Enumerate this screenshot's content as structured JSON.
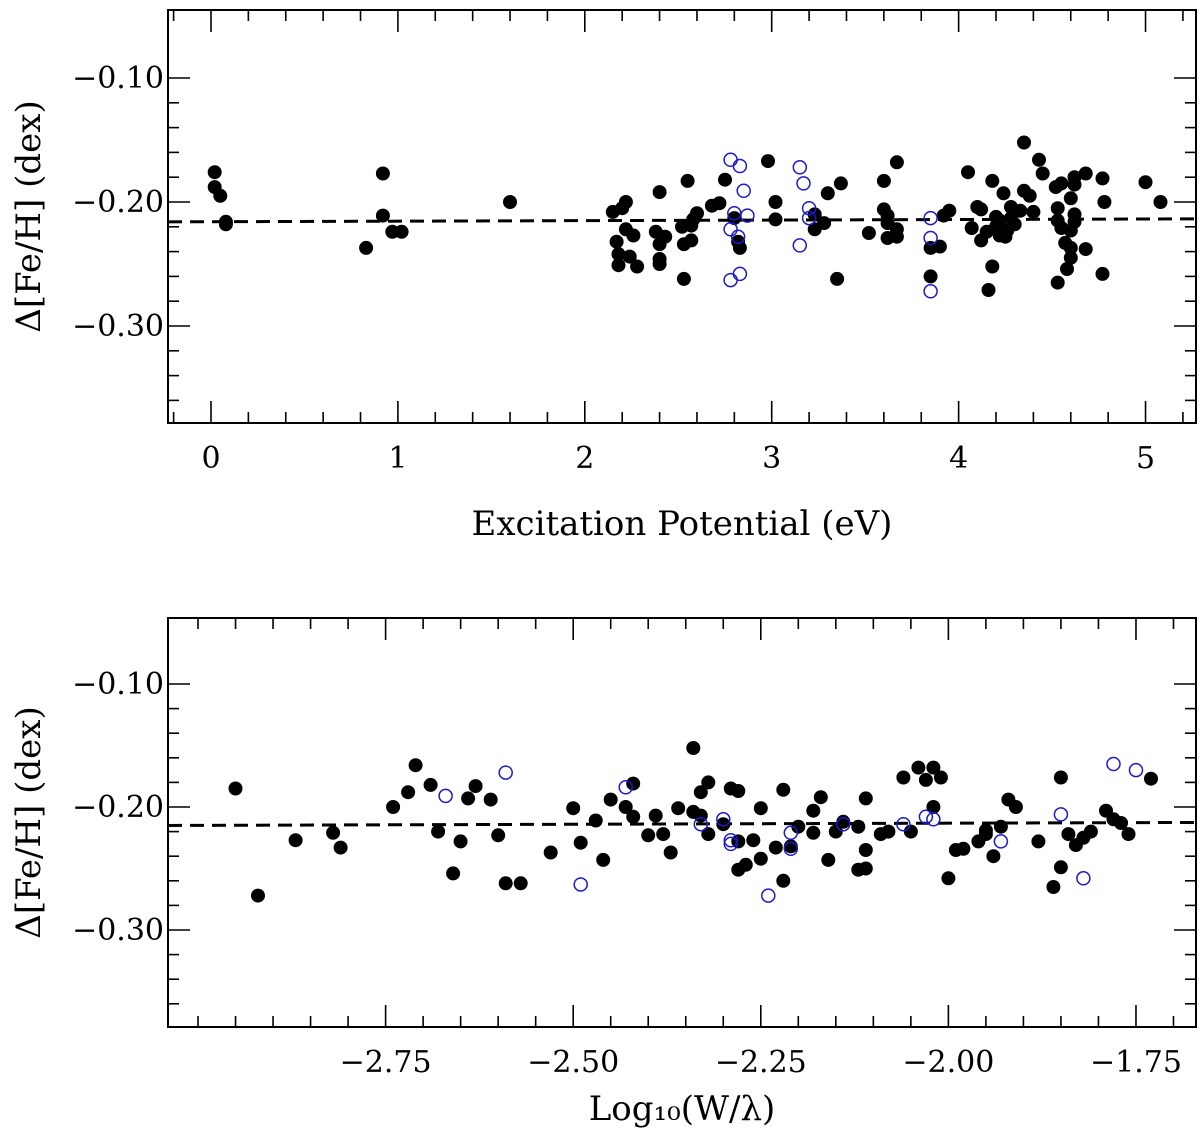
{
  "chart_data": [
    {
      "type": "scatter",
      "xlabel": "Excitation Potential (eV)",
      "ylabel": "Δ[Fe/H] (dex)",
      "xlim": [
        -0.23,
        5.27
      ],
      "ylim": [
        -0.1,
        -0.38
      ],
      "y_inverted": true,
      "x_ticks": [
        0,
        1,
        2,
        3,
        4,
        5
      ],
      "x_tick_labels": [
        "0",
        "1",
        "2",
        "3",
        "4",
        "5"
      ],
      "x_minor_step": 0.2,
      "y_ticks": [
        -0.1,
        -0.2,
        -0.3
      ],
      "y_tick_labels": [
        "−0.10",
        "−0.20",
        "−0.30"
      ],
      "y_minor_step": 0.02,
      "reference_line": {
        "value": -0.216,
        "style": "dashed"
      },
      "series": [
        {
          "marker": "filled-circle",
          "color": "#000000",
          "points": [
            [
              0.02,
              -0.176
            ],
            [
              0.02,
              -0.188
            ],
            [
              0.05,
              -0.195
            ],
            [
              0.08,
              -0.218
            ],
            [
              0.08,
              -0.216
            ],
            [
              0.83,
              -0.237
            ],
            [
              0.92,
              -0.177
            ],
            [
              0.92,
              -0.211
            ],
            [
              0.97,
              -0.224
            ],
            [
              1.02,
              -0.224
            ],
            [
              1.6,
              -0.2
            ],
            [
              2.15,
              -0.208
            ],
            [
              2.17,
              -0.232
            ],
            [
              2.18,
              -0.242
            ],
            [
              2.18,
              -0.251
            ],
            [
              2.2,
              -0.205
            ],
            [
              2.22,
              -0.2
            ],
            [
              2.22,
              -0.222
            ],
            [
              2.24,
              -0.244
            ],
            [
              2.26,
              -0.227
            ],
            [
              2.28,
              -0.252
            ],
            [
              2.38,
              -0.224
            ],
            [
              2.4,
              -0.192
            ],
            [
              2.4,
              -0.234
            ],
            [
              2.4,
              -0.246
            ],
            [
              2.4,
              -0.25
            ],
            [
              2.43,
              -0.228
            ],
            [
              2.52,
              -0.22
            ],
            [
              2.53,
              -0.234
            ],
            [
              2.53,
              -0.262
            ],
            [
              2.55,
              -0.183
            ],
            [
              2.57,
              -0.231
            ],
            [
              2.57,
              -0.219
            ],
            [
              2.58,
              -0.214
            ],
            [
              2.6,
              -0.209
            ],
            [
              2.68,
              -0.203
            ],
            [
              2.72,
              -0.201
            ],
            [
              2.75,
              -0.182
            ],
            [
              2.8,
              -0.213
            ],
            [
              2.82,
              -0.232
            ],
            [
              2.83,
              -0.237
            ],
            [
              2.98,
              -0.167
            ],
            [
              3.02,
              -0.2
            ],
            [
              3.02,
              -0.214
            ],
            [
              3.23,
              -0.222
            ],
            [
              3.23,
              -0.21
            ],
            [
              3.28,
              -0.217
            ],
            [
              3.3,
              -0.193
            ],
            [
              3.35,
              -0.262
            ],
            [
              3.37,
              -0.185
            ],
            [
              3.52,
              -0.225
            ],
            [
              3.6,
              -0.183
            ],
            [
              3.6,
              -0.206
            ],
            [
              3.62,
              -0.211
            ],
            [
              3.62,
              -0.217
            ],
            [
              3.62,
              -0.229
            ],
            [
              3.67,
              -0.168
            ],
            [
              3.67,
              -0.222
            ],
            [
              3.67,
              -0.228
            ],
            [
              3.85,
              -0.237
            ],
            [
              3.85,
              -0.26
            ],
            [
              3.9,
              -0.236
            ],
            [
              3.92,
              -0.211
            ],
            [
              3.95,
              -0.207
            ],
            [
              4.05,
              -0.176
            ],
            [
              4.07,
              -0.221
            ],
            [
              4.1,
              -0.204
            ],
            [
              4.12,
              -0.231
            ],
            [
              4.12,
              -0.206
            ],
            [
              4.15,
              -0.224
            ],
            [
              4.16,
              -0.271
            ],
            [
              4.18,
              -0.252
            ],
            [
              4.18,
              -0.183
            ],
            [
              4.2,
              -0.212
            ],
            [
              4.2,
              -0.22
            ],
            [
              4.22,
              -0.227
            ],
            [
              4.22,
              -0.215
            ],
            [
              4.24,
              -0.193
            ],
            [
              4.25,
              -0.228
            ],
            [
              4.26,
              -0.223
            ],
            [
              4.28,
              -0.204
            ],
            [
              4.28,
              -0.213
            ],
            [
              4.3,
              -0.218
            ],
            [
              4.33,
              -0.207
            ],
            [
              4.35,
              -0.191
            ],
            [
              4.35,
              -0.152
            ],
            [
              4.38,
              -0.195
            ],
            [
              4.4,
              -0.208
            ],
            [
              4.43,
              -0.166
            ],
            [
              4.45,
              -0.177
            ],
            [
              4.52,
              -0.188
            ],
            [
              4.53,
              -0.265
            ],
            [
              4.53,
              -0.205
            ],
            [
              4.53,
              -0.215
            ],
            [
              4.55,
              -0.185
            ],
            [
              4.55,
              -0.221
            ],
            [
              4.57,
              -0.233
            ],
            [
              4.58,
              -0.254
            ],
            [
              4.6,
              -0.197
            ],
            [
              4.6,
              -0.245
            ],
            [
              4.6,
              -0.237
            ],
            [
              4.6,
              -0.223
            ],
            [
              4.62,
              -0.18
            ],
            [
              4.62,
              -0.216
            ],
            [
              4.62,
              -0.21
            ],
            [
              4.62,
              -0.186
            ],
            [
              4.68,
              -0.238
            ],
            [
              4.68,
              -0.177
            ],
            [
              4.77,
              -0.181
            ],
            [
              4.77,
              -0.258
            ],
            [
              4.78,
              -0.2
            ],
            [
              5.0,
              -0.184
            ],
            [
              5.08,
              -0.2
            ]
          ]
        },
        {
          "marker": "open-circle",
          "color": "#1a1acc",
          "points": [
            [
              2.78,
              -0.166
            ],
            [
              2.78,
              -0.222
            ],
            [
              2.78,
              -0.263
            ],
            [
              2.8,
              -0.209
            ],
            [
              2.82,
              -0.228
            ],
            [
              2.83,
              -0.171
            ],
            [
              2.83,
              -0.258
            ],
            [
              2.85,
              -0.191
            ],
            [
              2.87,
              -0.211
            ],
            [
              3.15,
              -0.172
            ],
            [
              3.15,
              -0.235
            ],
            [
              3.17,
              -0.185
            ],
            [
              3.2,
              -0.205
            ],
            [
              3.2,
              -0.213
            ],
            [
              3.85,
              -0.213
            ],
            [
              3.85,
              -0.229
            ],
            [
              3.85,
              -0.272
            ]
          ]
        }
      ]
    },
    {
      "type": "scatter",
      "xlabel": "Log₁₀(W/λ)",
      "ylabel": "Δ[Fe/H] (dex)",
      "xlim": [
        -3.04,
        -1.67
      ],
      "ylim": [
        -0.1,
        -0.38
      ],
      "y_inverted": true,
      "x_ticks": [
        -2.75,
        -2.5,
        -2.25,
        -2.0,
        -1.75
      ],
      "x_tick_labels": [
        "−2.75",
        "−2.50",
        "−2.25",
        "−2.00",
        "−1.75"
      ],
      "x_minor_step": 0.05,
      "y_ticks": [
        -0.1,
        -0.2,
        -0.3
      ],
      "y_tick_labels": [
        "−0.10",
        "−0.20",
        "−0.30"
      ],
      "y_minor_step": 0.02,
      "reference_line": {
        "value": -0.215,
        "style": "dashed"
      },
      "series": [
        {
          "marker": "filled-circle",
          "color": "#000000",
          "points": [
            [
              -2.95,
              -0.185
            ],
            [
              -2.92,
              -0.272
            ],
            [
              -2.87,
              -0.227
            ],
            [
              -2.82,
              -0.221
            ],
            [
              -2.81,
              -0.233
            ],
            [
              -2.74,
              -0.2
            ],
            [
              -2.72,
              -0.188
            ],
            [
              -2.71,
              -0.166
            ],
            [
              -2.69,
              -0.182
            ],
            [
              -2.68,
              -0.22
            ],
            [
              -2.66,
              -0.254
            ],
            [
              -2.65,
              -0.228
            ],
            [
              -2.64,
              -0.193
            ],
            [
              -2.63,
              -0.183
            ],
            [
              -2.61,
              -0.194
            ],
            [
              -2.6,
              -0.223
            ],
            [
              -2.59,
              -0.262
            ],
            [
              -2.57,
              -0.262
            ],
            [
              -2.53,
              -0.237
            ],
            [
              -2.5,
              -0.201
            ],
            [
              -2.49,
              -0.229
            ],
            [
              -2.47,
              -0.211
            ],
            [
              -2.46,
              -0.243
            ],
            [
              -2.45,
              -0.194
            ],
            [
              -2.43,
              -0.2
            ],
            [
              -2.42,
              -0.181
            ],
            [
              -2.42,
              -0.208
            ],
            [
              -2.4,
              -0.223
            ],
            [
              -2.39,
              -0.207
            ],
            [
              -2.38,
              -0.222
            ],
            [
              -2.37,
              -0.237
            ],
            [
              -2.36,
              -0.201
            ],
            [
              -2.34,
              -0.204
            ],
            [
              -2.34,
              -0.152
            ],
            [
              -2.33,
              -0.188
            ],
            [
              -2.33,
              -0.207
            ],
            [
              -2.32,
              -0.18
            ],
            [
              -2.32,
              -0.222
            ],
            [
              -2.3,
              -0.214
            ],
            [
              -2.29,
              -0.185
            ],
            [
              -2.28,
              -0.187
            ],
            [
              -2.28,
              -0.228
            ],
            [
              -2.28,
              -0.251
            ],
            [
              -2.27,
              -0.247
            ],
            [
              -2.26,
              -0.227
            ],
            [
              -2.25,
              -0.242
            ],
            [
              -2.25,
              -0.201
            ],
            [
              -2.23,
              -0.233
            ],
            [
              -2.22,
              -0.26
            ],
            [
              -2.22,
              -0.186
            ],
            [
              -2.21,
              -0.232
            ],
            [
              -2.2,
              -0.216
            ],
            [
              -2.18,
              -0.221
            ],
            [
              -2.18,
              -0.203
            ],
            [
              -2.17,
              -0.192
            ],
            [
              -2.16,
              -0.243
            ],
            [
              -2.15,
              -0.22
            ],
            [
              -2.14,
              -0.212
            ],
            [
              -2.12,
              -0.216
            ],
            [
              -2.12,
              -0.251
            ],
            [
              -2.11,
              -0.193
            ],
            [
              -2.11,
              -0.235
            ],
            [
              -2.11,
              -0.25
            ],
            [
              -2.09,
              -0.222
            ],
            [
              -2.08,
              -0.22
            ],
            [
              -2.06,
              -0.176
            ],
            [
              -2.05,
              -0.22
            ],
            [
              -2.04,
              -0.168
            ],
            [
              -2.03,
              -0.178
            ],
            [
              -2.02,
              -0.2
            ],
            [
              -2.02,
              -0.168
            ],
            [
              -2.01,
              -0.176
            ],
            [
              -2.0,
              -0.258
            ],
            [
              -1.99,
              -0.235
            ],
            [
              -1.98,
              -0.234
            ],
            [
              -1.96,
              -0.228
            ],
            [
              -1.95,
              -0.219
            ],
            [
              -1.95,
              -0.222
            ],
            [
              -1.94,
              -0.24
            ],
            [
              -1.93,
              -0.216
            ],
            [
              -1.92,
              -0.194
            ],
            [
              -1.91,
              -0.2
            ],
            [
              -1.88,
              -0.228
            ],
            [
              -1.86,
              -0.265
            ],
            [
              -1.85,
              -0.249
            ],
            [
              -1.85,
              -0.176
            ],
            [
              -1.84,
              -0.222
            ],
            [
              -1.83,
              -0.231
            ],
            [
              -1.82,
              -0.225
            ],
            [
              -1.81,
              -0.22
            ],
            [
              -1.79,
              -0.203
            ],
            [
              -1.78,
              -0.21
            ],
            [
              -1.77,
              -0.213
            ],
            [
              -1.76,
              -0.222
            ],
            [
              -1.73,
              -0.177
            ]
          ]
        },
        {
          "marker": "open-circle",
          "color": "#1a1acc",
          "points": [
            [
              -2.67,
              -0.191
            ],
            [
              -2.59,
              -0.172
            ],
            [
              -2.49,
              -0.263
            ],
            [
              -2.43,
              -0.184
            ],
            [
              -2.33,
              -0.214
            ],
            [
              -2.3,
              -0.21
            ],
            [
              -2.29,
              -0.227
            ],
            [
              -2.29,
              -0.23
            ],
            [
              -2.24,
              -0.272
            ],
            [
              -2.21,
              -0.234
            ],
            [
              -2.21,
              -0.221
            ],
            [
              -2.14,
              -0.214
            ],
            [
              -2.06,
              -0.214
            ],
            [
              -2.03,
              -0.208
            ],
            [
              -2.02,
              -0.21
            ],
            [
              -1.93,
              -0.228
            ],
            [
              -1.85,
              -0.206
            ],
            [
              -1.82,
              -0.258
            ],
            [
              -1.78,
              -0.165
            ],
            [
              -1.75,
              -0.17
            ]
          ]
        }
      ]
    }
  ]
}
